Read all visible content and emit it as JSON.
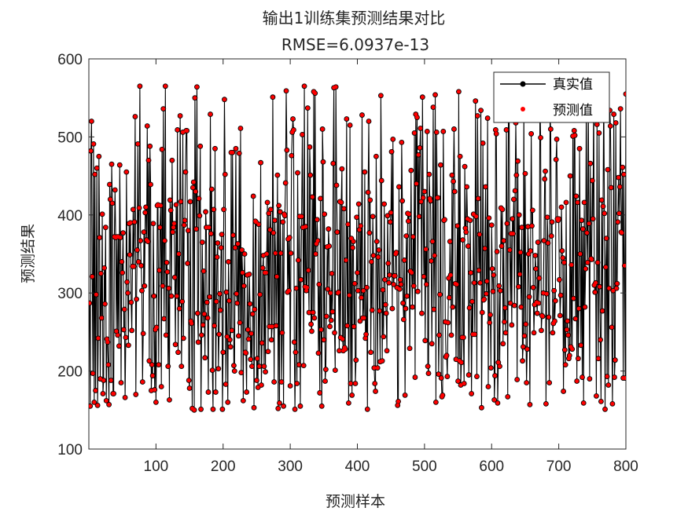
{
  "chart_data": {
    "type": "line",
    "title": "输出1训练集预测结果对比",
    "subtitle": "RMSE=6.0937e-13",
    "xlabel": "预测样本",
    "ylabel": "预测结果",
    "xlim": [
      0,
      800
    ],
    "ylim": [
      100,
      600
    ],
    "xticks": [
      100,
      200,
      300,
      400,
      500,
      600,
      700,
      800
    ],
    "yticks": [
      100,
      200,
      300,
      400,
      500,
      600
    ],
    "grid": false,
    "legend_position": "top-right",
    "n_points": 800,
    "random_seed": 20231,
    "series": [
      {
        "name": "真实值",
        "color": "#000000",
        "style": "line-with-dot-markers"
      },
      {
        "name": "预测值",
        "color": "#ff0000",
        "style": "dot-markers"
      }
    ],
    "series_y_values_sample": [
      287,
      155,
      482,
      520,
      321,
      197,
      491,
      160,
      452,
      175,
      298,
      460,
      156,
      242,
      475,
      371,
      190,
      325,
      268,
      401
    ]
  }
}
